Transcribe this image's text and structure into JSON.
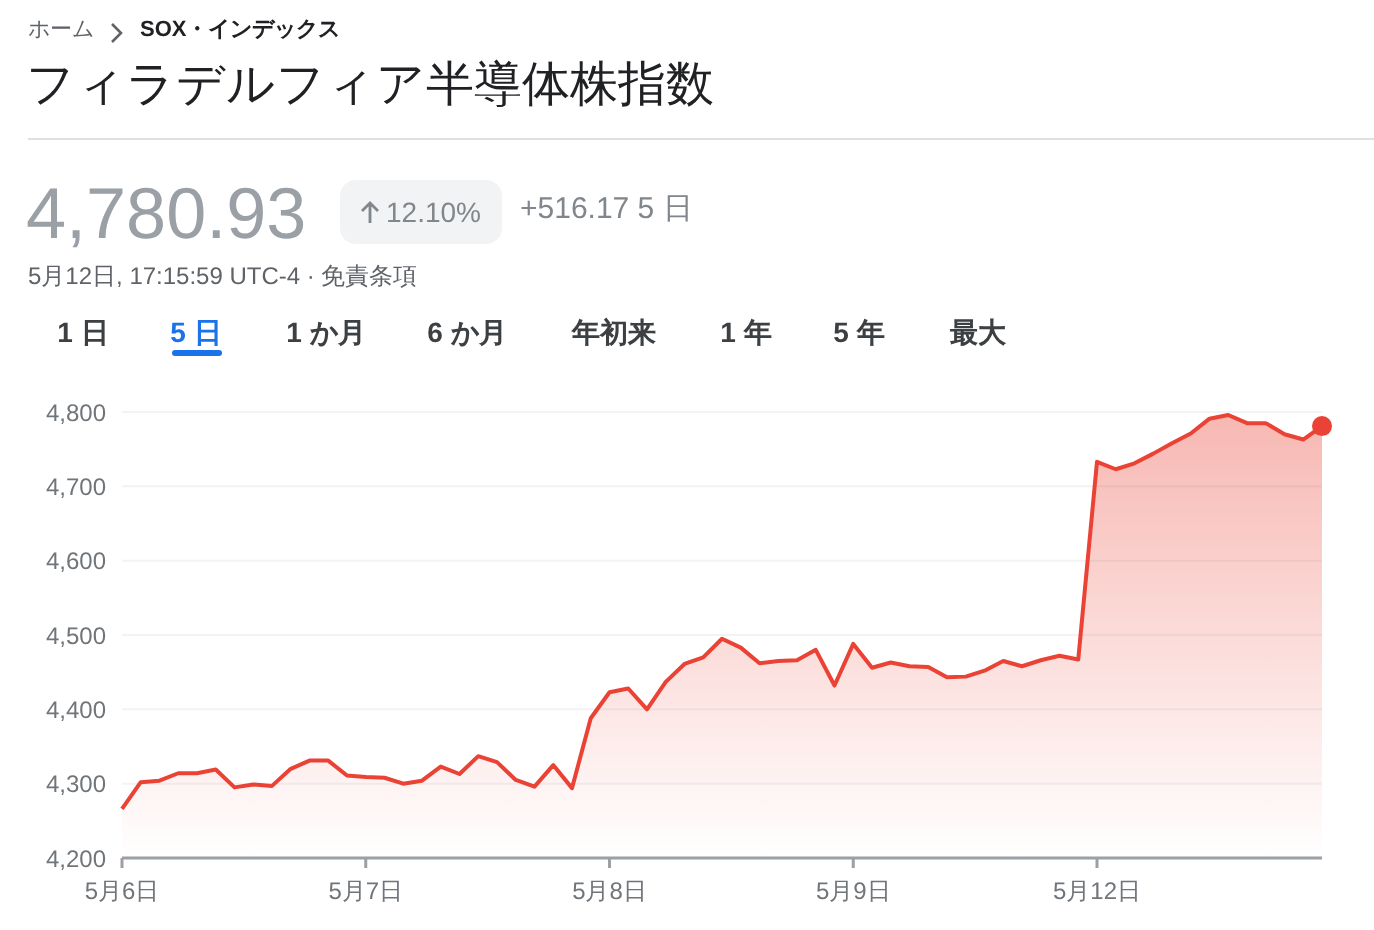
{
  "chart_data": {
    "type": "area",
    "title": "フィラデルフィア半導体株指数",
    "annotations": [
      "ホーム",
      "SOX・インデックス",
      "4,780.93",
      "12.10%",
      "+516.17 5 日",
      "5月12日, 17:15:59 UTC-4 · 免責条項",
      "1 日",
      "5 日",
      "1 か月",
      "6 か月",
      "年初来",
      "1 年",
      "5 年",
      "最大"
    ],
    "categories": [
      "5月6日",
      null,
      null,
      null,
      null,
      null,
      null,
      null,
      null,
      null,
      null,
      null,
      null,
      "5月7日",
      null,
      null,
      null,
      null,
      null,
      null,
      null,
      null,
      null,
      null,
      null,
      null,
      "5月8日",
      null,
      null,
      null,
      null,
      null,
      null,
      null,
      null,
      null,
      null,
      null,
      null,
      "5月9日",
      null,
      null,
      null,
      null,
      null,
      null,
      null,
      null,
      null,
      null,
      null,
      null,
      "5月12日",
      null,
      null,
      null,
      null,
      null,
      null,
      null,
      null,
      null,
      null,
      null,
      null
    ],
    "ylim": [
      4200,
      4800
    ],
    "yticks": [
      {
        "value": 4200,
        "label": "4,200"
      },
      {
        "value": 4300,
        "label": "4,300"
      },
      {
        "value": 4400,
        "label": "4,400"
      },
      {
        "value": 4500,
        "label": "4,500"
      },
      {
        "value": 4600,
        "label": "4,600"
      },
      {
        "value": 4700,
        "label": "4,700"
      },
      {
        "value": 4800,
        "label": "4,800"
      }
    ],
    "grid": "y",
    "marker": "none",
    "series": [
      {
        "color": "#ea4335",
        "values": [
          4266,
          4302,
          4304,
          4314,
          4314,
          4319,
          4295,
          4299,
          4297,
          4320,
          4331,
          4331,
          4311,
          4309,
          4308,
          4300,
          4304,
          4323,
          4313,
          4337,
          4329,
          4305,
          4296,
          4325,
          4294,
          4388,
          4423,
          4428,
          4400,
          4437,
          4461,
          4470,
          4495,
          4483,
          4462,
          4465,
          4466,
          4480,
          4432,
          4488,
          4456,
          4463,
          4458,
          4457,
          4443,
          4444,
          4452,
          4465,
          4458,
          4466,
          4472,
          4467,
          4733,
          4723,
          4731,
          4744,
          4758,
          4771,
          4791,
          4796,
          4785,
          4785,
          4770,
          4763,
          4781
        ]
      },
      {
        "type": "scatter",
        "marker": "circle",
        "color": "#ea4335",
        "values": [
          null,
          null,
          null,
          null,
          null,
          null,
          null,
          null,
          null,
          null,
          null,
          null,
          null,
          null,
          null,
          null,
          null,
          null,
          null,
          null,
          null,
          null,
          null,
          null,
          null,
          null,
          null,
          null,
          null,
          null,
          null,
          null,
          null,
          null,
          null,
          null,
          null,
          null,
          null,
          null,
          null,
          null,
          null,
          null,
          null,
          null,
          null,
          null,
          null,
          null,
          null,
          null,
          null,
          null,
          null,
          null,
          null,
          null,
          null,
          null,
          null,
          null,
          null,
          null,
          4781
        ]
      }
    ]
  }
}
